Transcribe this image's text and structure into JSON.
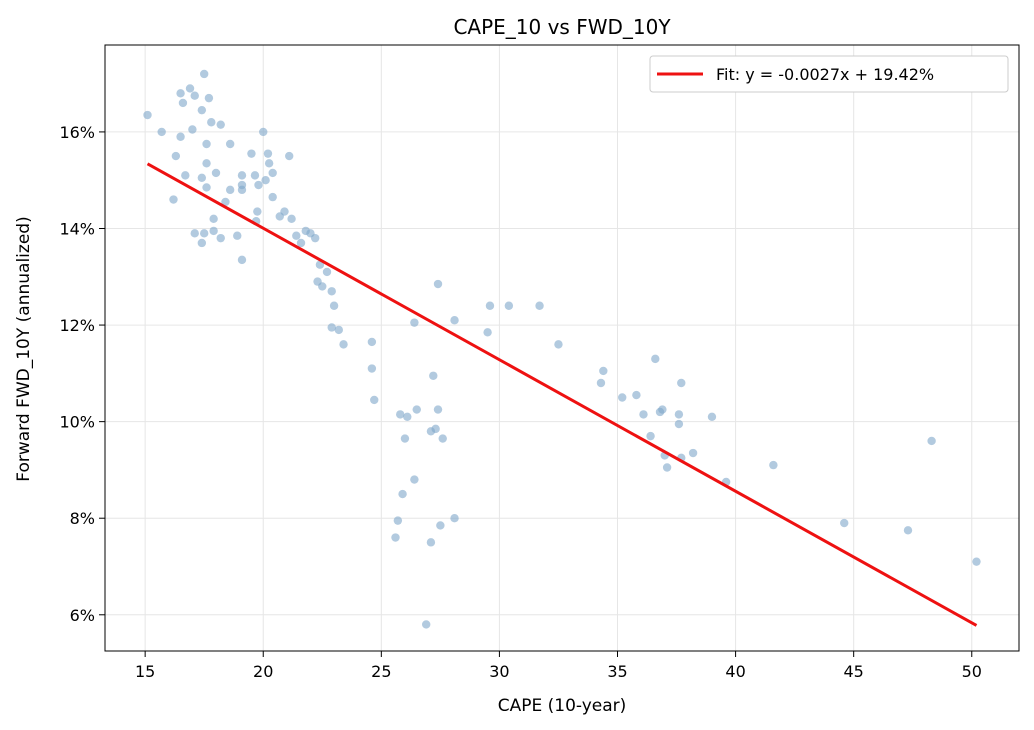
{
  "chart_data": {
    "type": "scatter",
    "title": "CAPE_10 vs FWD_10Y",
    "xlabel": "CAPE (10-year)",
    "ylabel": "Forward FWD_10Y (annualized)",
    "xlim": [
      13.3,
      52.0
    ],
    "ylim": [
      5.25,
      17.8
    ],
    "x_ticks": [
      15,
      20,
      25,
      30,
      35,
      40,
      45,
      50
    ],
    "x_tick_labels": [
      "15",
      "20",
      "25",
      "30",
      "35",
      "40",
      "45",
      "50"
    ],
    "y_ticks": [
      6,
      8,
      10,
      12,
      14,
      16
    ],
    "y_tick_labels": [
      "6%",
      "8%",
      "10%",
      "12%",
      "14%",
      "16%"
    ],
    "grid": true,
    "legend_position": "top-right",
    "colors": {
      "points": "#7ea6c9",
      "fit": "#ee1111"
    },
    "series": [
      {
        "name": "",
        "kind": "scatter",
        "points": [
          [
            15.1,
            16.35
          ],
          [
            15.7,
            16.0
          ],
          [
            16.3,
            15.5
          ],
          [
            16.5,
            16.8
          ],
          [
            16.6,
            16.6
          ],
          [
            16.9,
            16.9
          ],
          [
            17.1,
            16.75
          ],
          [
            17.5,
            17.2
          ],
          [
            17.7,
            16.7
          ],
          [
            17.4,
            16.45
          ],
          [
            16.5,
            15.9
          ],
          [
            17.0,
            16.05
          ],
          [
            17.8,
            16.2
          ],
          [
            18.2,
            16.15
          ],
          [
            17.6,
            15.75
          ],
          [
            17.6,
            15.35
          ],
          [
            16.7,
            15.1
          ],
          [
            17.4,
            15.05
          ],
          [
            16.2,
            14.6
          ],
          [
            17.6,
            14.85
          ],
          [
            18.0,
            15.15
          ],
          [
            18.6,
            15.75
          ],
          [
            18.6,
            14.8
          ],
          [
            18.4,
            14.55
          ],
          [
            17.9,
            14.2
          ],
          [
            17.1,
            13.9
          ],
          [
            17.5,
            13.9
          ],
          [
            17.9,
            13.95
          ],
          [
            17.4,
            13.7
          ],
          [
            18.2,
            13.8
          ],
          [
            18.9,
            13.85
          ],
          [
            19.1,
            13.35
          ],
          [
            19.1,
            15.1
          ],
          [
            19.1,
            14.9
          ],
          [
            19.1,
            14.8
          ],
          [
            19.5,
            15.55
          ],
          [
            19.65,
            15.1
          ],
          [
            19.8,
            14.9
          ],
          [
            19.75,
            14.35
          ],
          [
            19.7,
            14.15
          ],
          [
            20.0,
            16.0
          ],
          [
            20.1,
            15.0
          ],
          [
            20.2,
            15.55
          ],
          [
            20.25,
            15.35
          ],
          [
            20.4,
            15.15
          ],
          [
            20.4,
            14.65
          ],
          [
            20.7,
            14.25
          ],
          [
            20.9,
            14.35
          ],
          [
            21.1,
            15.5
          ],
          [
            21.2,
            14.2
          ],
          [
            21.4,
            13.85
          ],
          [
            21.6,
            13.7
          ],
          [
            21.8,
            13.95
          ],
          [
            22.0,
            13.9
          ],
          [
            22.2,
            13.8
          ],
          [
            22.4,
            13.25
          ],
          [
            22.3,
            12.9
          ],
          [
            22.5,
            12.8
          ],
          [
            22.7,
            13.1
          ],
          [
            22.9,
            12.7
          ],
          [
            23.0,
            12.4
          ],
          [
            22.9,
            11.95
          ],
          [
            23.2,
            11.9
          ],
          [
            23.4,
            11.6
          ],
          [
            24.6,
            11.65
          ],
          [
            24.6,
            11.1
          ],
          [
            24.7,
            10.45
          ],
          [
            25.8,
            10.15
          ],
          [
            26.0,
            9.65
          ],
          [
            26.1,
            10.1
          ],
          [
            26.5,
            10.25
          ],
          [
            26.4,
            12.05
          ],
          [
            27.4,
            12.85
          ],
          [
            28.1,
            12.1
          ],
          [
            27.2,
            10.95
          ],
          [
            27.4,
            10.25
          ],
          [
            27.1,
            9.8
          ],
          [
            27.3,
            9.85
          ],
          [
            27.6,
            9.65
          ],
          [
            26.4,
            8.8
          ],
          [
            25.9,
            8.5
          ],
          [
            25.7,
            7.95
          ],
          [
            25.6,
            7.6
          ],
          [
            27.1,
            7.5
          ],
          [
            27.5,
            7.85
          ],
          [
            28.1,
            8.0
          ],
          [
            26.9,
            5.8
          ],
          [
            29.5,
            11.85
          ],
          [
            29.6,
            12.4
          ],
          [
            30.4,
            12.4
          ],
          [
            31.7,
            12.4
          ],
          [
            32.5,
            11.6
          ],
          [
            34.3,
            10.8
          ],
          [
            34.4,
            11.05
          ],
          [
            35.2,
            10.5
          ],
          [
            35.8,
            10.55
          ],
          [
            36.1,
            10.15
          ],
          [
            36.4,
            9.7
          ],
          [
            36.6,
            11.3
          ],
          [
            36.8,
            10.2
          ],
          [
            36.9,
            10.25
          ],
          [
            37.0,
            9.3
          ],
          [
            37.1,
            9.05
          ],
          [
            37.6,
            10.15
          ],
          [
            37.6,
            9.95
          ],
          [
            37.7,
            10.8
          ],
          [
            37.7,
            9.25
          ],
          [
            38.2,
            9.35
          ],
          [
            39.0,
            10.1
          ],
          [
            39.6,
            8.75
          ],
          [
            41.6,
            9.1
          ],
          [
            44.6,
            7.9
          ],
          [
            47.3,
            7.75
          ],
          [
            48.3,
            9.6
          ],
          [
            50.2,
            7.1
          ]
        ]
      },
      {
        "name": "Fit: y = -0.0027x + 19.42%",
        "kind": "line",
        "points": [
          [
            15.1,
            15.34
          ],
          [
            50.2,
            5.78
          ]
        ]
      }
    ]
  }
}
